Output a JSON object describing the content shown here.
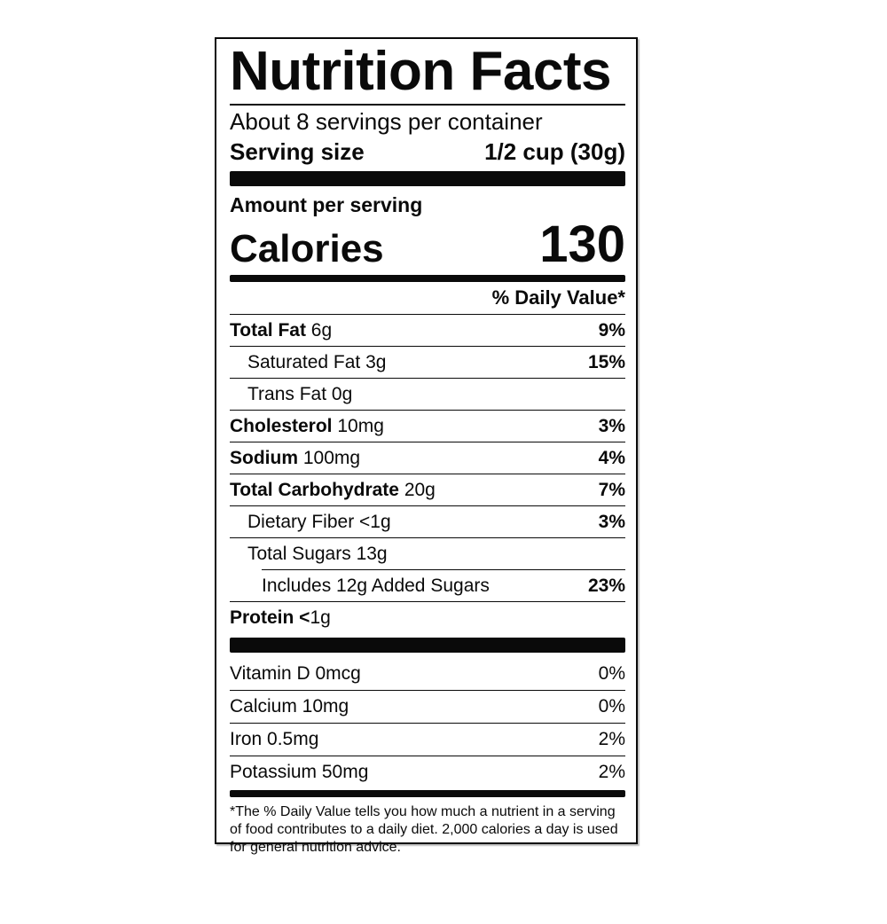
{
  "label": {
    "title": "Nutrition Facts",
    "servings_per_container": "About 8 servings per container",
    "serving_size_label": "Serving size",
    "serving_size_value": "1/2 cup (30g)",
    "amount_per_serving": "Amount per serving",
    "calories_label": "Calories",
    "calories_value": "130",
    "daily_value_header": "% Daily Value*",
    "nutrient_rows": [
      {
        "bold": "Total Fat ",
        "regular": "6g",
        "percent": "9%"
      },
      {
        "bold": "",
        "regular": "Saturated Fat 3g",
        "percent": "15%"
      },
      {
        "bold": "",
        "regular": "Trans Fat 0g",
        "percent": ""
      },
      {
        "bold": "Cholesterol ",
        "regular": "10mg",
        "percent": "3%"
      },
      {
        "bold": "Sodium ",
        "regular": "100mg",
        "percent": "4%"
      },
      {
        "bold": "Total Carbohydrate ",
        "regular": "20g",
        "percent": "7%"
      },
      {
        "bold": "",
        "regular": "Dietary Fiber <1g",
        "percent": "3%"
      },
      {
        "bold": "",
        "regular": "Total Sugars 13g",
        "percent": ""
      },
      {
        "bold": "",
        "regular": "Includes 12g Added Sugars",
        "percent": "23%"
      },
      {
        "bold": "Protein <",
        "regular": "1g",
        "percent": ""
      }
    ],
    "micronutrient_rows": [
      {
        "label": "Vitamin D 0mcg",
        "percent": "0%"
      },
      {
        "label": "Calcium 10mg",
        "percent": "0%"
      },
      {
        "label": "Iron 0.5mg",
        "percent": "2%"
      },
      {
        "label": "Potassium 50mg",
        "percent": "2%"
      }
    ],
    "footnote": "*The % Daily Value tells you how much a nutrient in a serving of food contributes to a daily diet. 2,000 calories a day is used for general nutrition advice.",
    "colors": {
      "ink": "#0a0a0a",
      "background": "#ffffff"
    }
  }
}
